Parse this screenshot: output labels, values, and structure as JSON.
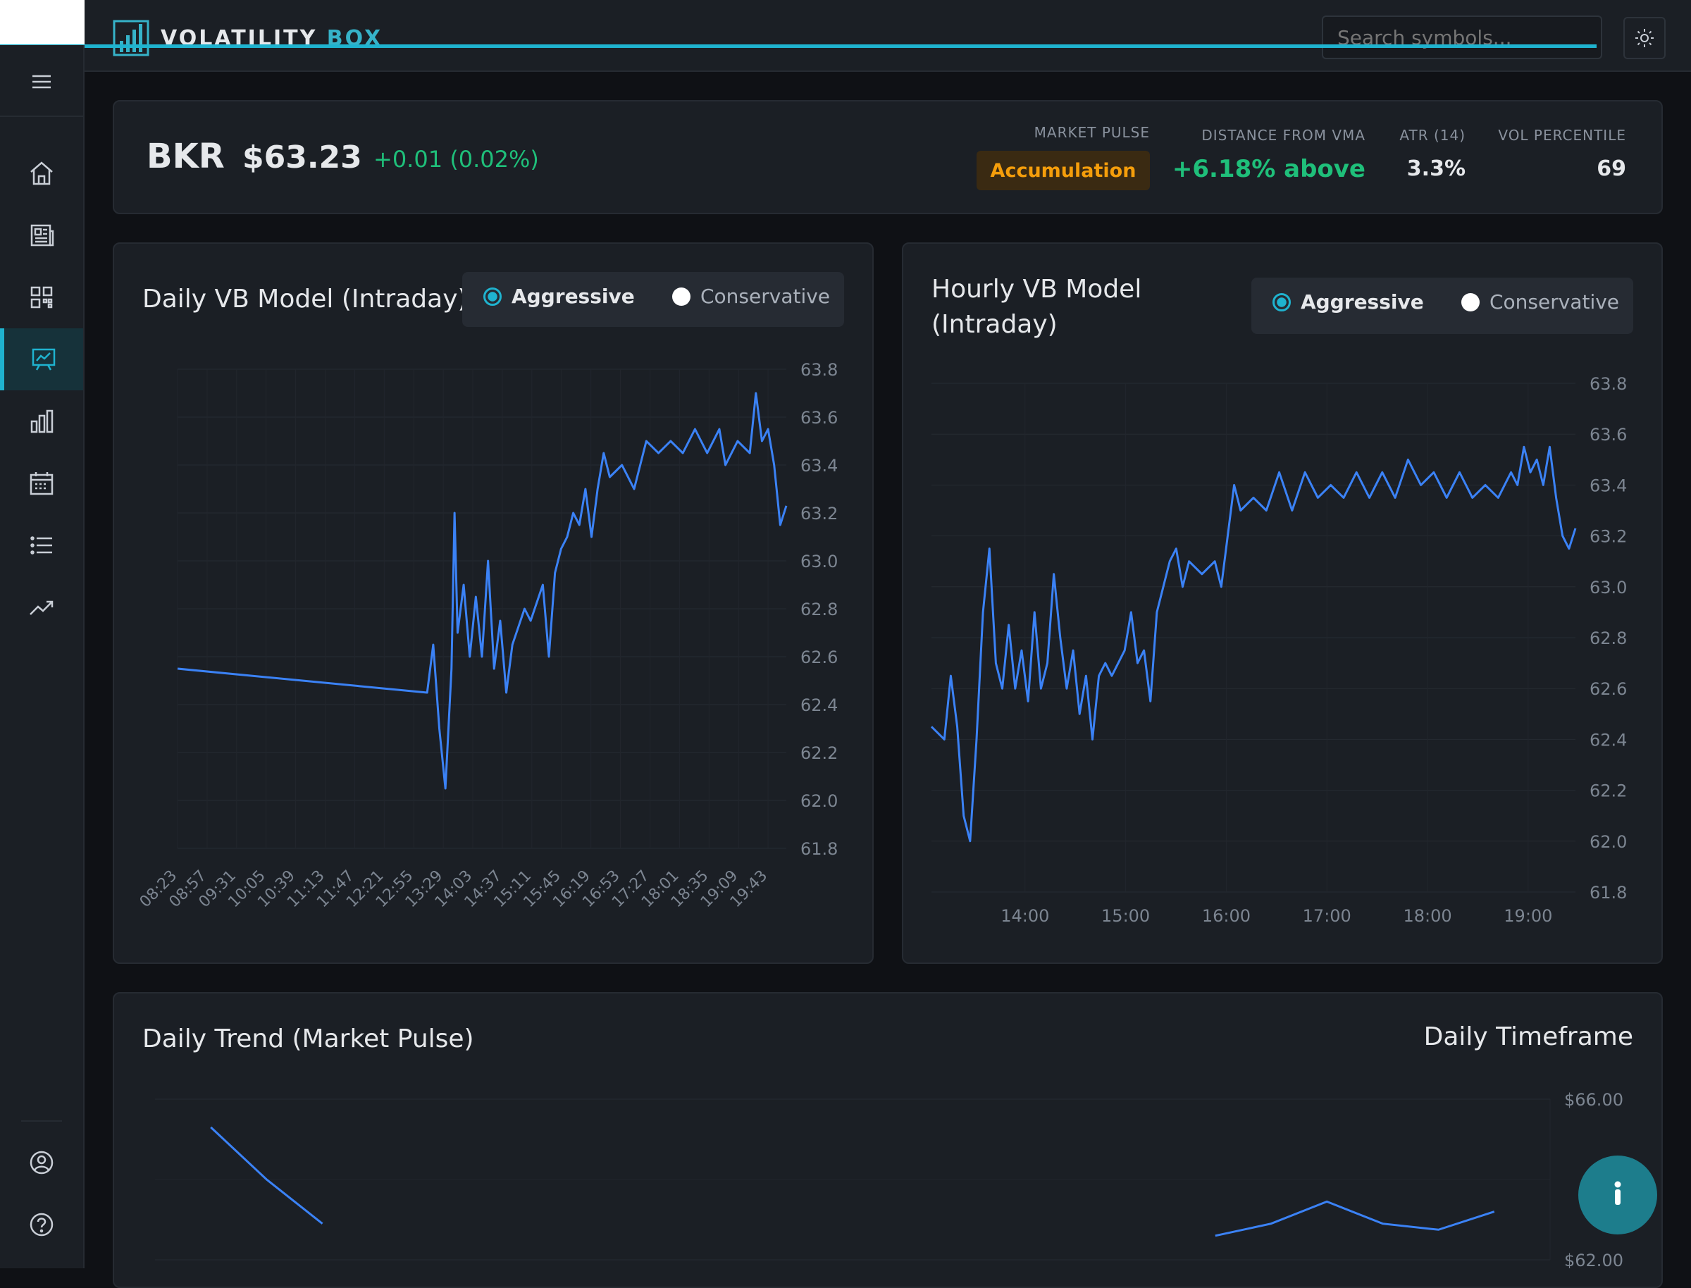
{
  "app": {
    "brand_word1": "VOLATILITY",
    "brand_word2": "BOX",
    "search_placeholder": "Search symbols...",
    "accent": "#1fb3cf"
  },
  "sidebar": {
    "items": [
      {
        "name": "menu-icon"
      },
      {
        "name": "home-icon"
      },
      {
        "name": "news-icon"
      },
      {
        "name": "qr-grid-icon"
      },
      {
        "name": "presentation-chart-icon",
        "active": true
      },
      {
        "name": "bar-chart-icon"
      },
      {
        "name": "calendar-icon"
      },
      {
        "name": "list-icon"
      },
      {
        "name": "trending-up-icon"
      },
      {
        "name": "account-icon"
      },
      {
        "name": "help-icon"
      }
    ]
  },
  "quote": {
    "symbol": "BKR",
    "price": "$63.23",
    "change": "+0.01 (0.02%)",
    "market_pulse_label": "MARKET PULSE",
    "market_pulse_value": "Accumulation",
    "distance_label": "DISTANCE FROM VMA",
    "distance_value": "+6.18% above",
    "atr_label": "ATR (14)",
    "atr_value": "3.3%",
    "vol_label": "VOL PERCENTILE",
    "vol_value": "69",
    "up_color": "#1fbf7a",
    "pulse_color": "#f59e0b"
  },
  "daily_card": {
    "title": "Daily VB Model (Intraday)",
    "option_aggressive": "Aggressive",
    "option_conservative": "Conservative",
    "selected": "Aggressive"
  },
  "hourly_card": {
    "title_line1": "Hourly VB Model",
    "title_line2": "(Intraday)",
    "option_aggressive": "Aggressive",
    "option_conservative": "Conservative",
    "selected": "Aggressive"
  },
  "trend_card": {
    "title": "Daily Trend (Market Pulse)",
    "timeframe": "Daily Timeframe"
  },
  "chart_data": [
    {
      "type": "line",
      "title": "Daily VB Model (Intraday)",
      "color": "#3b82f6",
      "ylim": [
        61.8,
        63.8
      ],
      "y_ticks": [
        "63.8",
        "63.6",
        "63.4",
        "63.2",
        "63.0",
        "62.8",
        "62.6",
        "62.4",
        "62.2",
        "62.0",
        "61.8"
      ],
      "x_ticks": [
        "08:23",
        "08:57",
        "09:31",
        "10:05",
        "10:39",
        "11:13",
        "11:47",
        "12:21",
        "12:55",
        "13:29",
        "14:03",
        "14:37",
        "15:11",
        "15:45",
        "16:19",
        "16:53",
        "17:27",
        "18:01",
        "18:35",
        "19:09",
        "19:43"
      ],
      "points": [
        [
          0,
          62.55
        ],
        [
          0.41,
          62.45
        ],
        [
          0.42,
          62.65
        ],
        [
          0.43,
          62.3
        ],
        [
          0.44,
          62.05
        ],
        [
          0.45,
          62.55
        ],
        [
          0.455,
          63.2
        ],
        [
          0.46,
          62.7
        ],
        [
          0.47,
          62.9
        ],
        [
          0.48,
          62.6
        ],
        [
          0.49,
          62.85
        ],
        [
          0.5,
          62.6
        ],
        [
          0.51,
          63.0
        ],
        [
          0.52,
          62.55
        ],
        [
          0.53,
          62.75
        ],
        [
          0.54,
          62.45
        ],
        [
          0.55,
          62.65
        ],
        [
          0.57,
          62.8
        ],
        [
          0.58,
          62.75
        ],
        [
          0.6,
          62.9
        ],
        [
          0.61,
          62.6
        ],
        [
          0.62,
          62.95
        ],
        [
          0.63,
          63.05
        ],
        [
          0.64,
          63.1
        ],
        [
          0.65,
          63.2
        ],
        [
          0.66,
          63.15
        ],
        [
          0.67,
          63.3
        ],
        [
          0.68,
          63.1
        ],
        [
          0.69,
          63.3
        ],
        [
          0.7,
          63.45
        ],
        [
          0.71,
          63.35
        ],
        [
          0.73,
          63.4
        ],
        [
          0.75,
          63.3
        ],
        [
          0.77,
          63.5
        ],
        [
          0.79,
          63.45
        ],
        [
          0.81,
          63.5
        ],
        [
          0.83,
          63.45
        ],
        [
          0.85,
          63.55
        ],
        [
          0.87,
          63.45
        ],
        [
          0.89,
          63.55
        ],
        [
          0.9,
          63.4
        ],
        [
          0.92,
          63.5
        ],
        [
          0.94,
          63.45
        ],
        [
          0.95,
          63.7
        ],
        [
          0.96,
          63.5
        ],
        [
          0.97,
          63.55
        ],
        [
          0.98,
          63.4
        ],
        [
          0.99,
          63.15
        ],
        [
          1.0,
          63.23
        ]
      ]
    },
    {
      "type": "line",
      "title": "Hourly VB Model (Intraday)",
      "color": "#3b82f6",
      "ylim": [
        61.8,
        63.8
      ],
      "y_ticks": [
        "63.8",
        "63.6",
        "63.4",
        "63.2",
        "63.0",
        "62.8",
        "62.6",
        "62.4",
        "62.2",
        "62.0",
        "61.8"
      ],
      "x_ticks": [
        "14:00",
        "15:00",
        "16:00",
        "17:00",
        "18:00",
        "19:00"
      ],
      "points": [
        [
          0,
          62.45
        ],
        [
          0.02,
          62.4
        ],
        [
          0.03,
          62.65
        ],
        [
          0.04,
          62.45
        ],
        [
          0.05,
          62.1
        ],
        [
          0.06,
          62.0
        ],
        [
          0.07,
          62.4
        ],
        [
          0.08,
          62.9
        ],
        [
          0.09,
          63.15
        ],
        [
          0.1,
          62.7
        ],
        [
          0.11,
          62.6
        ],
        [
          0.12,
          62.85
        ],
        [
          0.13,
          62.6
        ],
        [
          0.14,
          62.75
        ],
        [
          0.15,
          62.55
        ],
        [
          0.16,
          62.9
        ],
        [
          0.17,
          62.6
        ],
        [
          0.18,
          62.7
        ],
        [
          0.19,
          63.05
        ],
        [
          0.2,
          62.8
        ],
        [
          0.21,
          62.6
        ],
        [
          0.22,
          62.75
        ],
        [
          0.23,
          62.5
        ],
        [
          0.24,
          62.65
        ],
        [
          0.25,
          62.4
        ],
        [
          0.26,
          62.65
        ],
        [
          0.27,
          62.7
        ],
        [
          0.28,
          62.65
        ],
        [
          0.3,
          62.75
        ],
        [
          0.31,
          62.9
        ],
        [
          0.32,
          62.7
        ],
        [
          0.33,
          62.75
        ],
        [
          0.34,
          62.55
        ],
        [
          0.35,
          62.9
        ],
        [
          0.36,
          63.0
        ],
        [
          0.37,
          63.1
        ],
        [
          0.38,
          63.15
        ],
        [
          0.39,
          63.0
        ],
        [
          0.4,
          63.1
        ],
        [
          0.42,
          63.05
        ],
        [
          0.44,
          63.1
        ],
        [
          0.45,
          63.0
        ],
        [
          0.46,
          63.2
        ],
        [
          0.47,
          63.4
        ],
        [
          0.48,
          63.3
        ],
        [
          0.5,
          63.35
        ],
        [
          0.52,
          63.3
        ],
        [
          0.54,
          63.45
        ],
        [
          0.56,
          63.3
        ],
        [
          0.58,
          63.45
        ],
        [
          0.6,
          63.35
        ],
        [
          0.62,
          63.4
        ],
        [
          0.64,
          63.35
        ],
        [
          0.66,
          63.45
        ],
        [
          0.68,
          63.35
        ],
        [
          0.7,
          63.45
        ],
        [
          0.72,
          63.35
        ],
        [
          0.74,
          63.5
        ],
        [
          0.76,
          63.4
        ],
        [
          0.78,
          63.45
        ],
        [
          0.8,
          63.35
        ],
        [
          0.82,
          63.45
        ],
        [
          0.84,
          63.35
        ],
        [
          0.86,
          63.4
        ],
        [
          0.88,
          63.35
        ],
        [
          0.9,
          63.45
        ],
        [
          0.91,
          63.4
        ],
        [
          0.92,
          63.55
        ],
        [
          0.93,
          63.45
        ],
        [
          0.94,
          63.5
        ],
        [
          0.95,
          63.4
        ],
        [
          0.96,
          63.55
        ],
        [
          0.97,
          63.35
        ],
        [
          0.98,
          63.2
        ],
        [
          0.99,
          63.15
        ],
        [
          1.0,
          63.23
        ]
      ]
    },
    {
      "type": "line",
      "title": "Daily Trend (Market Pulse)",
      "color": "#3b82f6",
      "y_ticks": [
        "$66.00",
        "$62.00"
      ],
      "points": [
        [
          0.04,
          65.3
        ],
        [
          0.08,
          64.0
        ],
        [
          0.12,
          62.9
        ],
        [
          0.76,
          62.6
        ],
        [
          0.8,
          62.9
        ],
        [
          0.84,
          63.45
        ],
        [
          0.88,
          62.9
        ],
        [
          0.92,
          62.75
        ],
        [
          0.96,
          63.2
        ]
      ]
    }
  ]
}
